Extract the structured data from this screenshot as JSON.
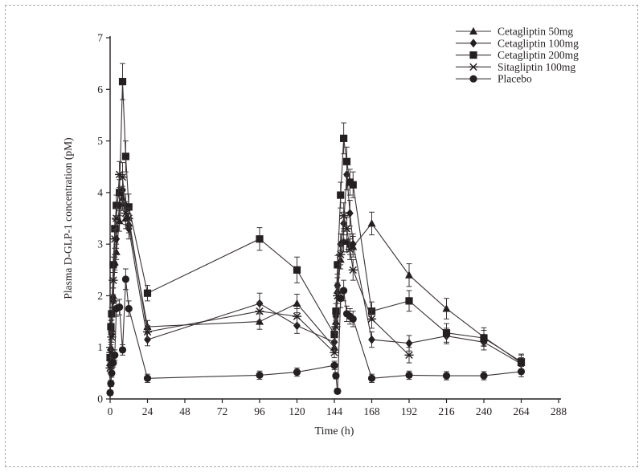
{
  "figure": {
    "background": "#ffffff",
    "border_color": "#a9a9a9",
    "ink_color": "#241f20",
    "line_color": "#3a3335"
  },
  "chart_data": {
    "type": "line",
    "title": "",
    "xlabel": "Time (h)",
    "ylabel": "Plasma D-GLP-1 concentration (pM)",
    "xlim": [
      0,
      288
    ],
    "ylim": [
      0,
      7
    ],
    "xticks": [
      0,
      24,
      48,
      72,
      96,
      120,
      144,
      168,
      192,
      216,
      240,
      264,
      288
    ],
    "yticks": [
      0,
      1,
      2,
      3,
      4,
      5,
      6,
      7
    ],
    "grid": false,
    "legend_position": "top-right",
    "error_bars": true,
    "x": [
      0,
      0.5,
      1,
      2,
      3,
      4,
      6,
      8,
      10,
      12,
      24,
      96,
      120,
      144,
      145,
      146,
      148,
      150,
      152,
      154,
      156,
      168,
      192,
      216,
      240,
      264
    ],
    "series": [
      {
        "name": "Cetagliptin 50mg",
        "marker": "triangle",
        "values": [
          0.7,
          1.0,
          1.35,
          2.0,
          2.65,
          2.85,
          3.45,
          3.9,
          3.5,
          3.4,
          1.4,
          1.5,
          1.85,
          1.0,
          1.5,
          2.1,
          2.7,
          3.05,
          3.05,
          3.0,
          2.95,
          3.4,
          2.4,
          1.75,
          1.2,
          0.7
        ],
        "err": [
          0.08,
          0.1,
          0.1,
          0.15,
          0.15,
          0.15,
          0.2,
          0.22,
          0.2,
          0.18,
          0.12,
          0.15,
          0.18,
          0.1,
          0.12,
          0.15,
          0.18,
          0.2,
          0.2,
          0.2,
          0.2,
          0.22,
          0.22,
          0.2,
          0.18,
          0.15
        ]
      },
      {
        "name": "Cetagliptin 100mg",
        "marker": "diamond",
        "values": [
          0.65,
          0.95,
          1.25,
          1.9,
          2.6,
          3.1,
          3.75,
          4.05,
          3.75,
          3.3,
          1.15,
          1.85,
          1.42,
          1.1,
          1.6,
          2.2,
          3.0,
          3.4,
          4.35,
          3.6,
          3.0,
          1.15,
          1.08,
          1.22,
          1.1,
          0.68
        ],
        "err": [
          0.08,
          0.1,
          0.1,
          0.12,
          0.15,
          0.18,
          0.2,
          0.25,
          0.22,
          0.2,
          0.12,
          0.2,
          0.15,
          0.1,
          0.12,
          0.15,
          0.2,
          0.22,
          0.3,
          0.25,
          0.2,
          0.15,
          0.15,
          0.15,
          0.15,
          0.12
        ]
      },
      {
        "name": "Cetagliptin 200mg",
        "marker": "square",
        "values": [
          0.8,
          1.4,
          1.65,
          2.6,
          3.3,
          3.75,
          4.0,
          6.15,
          4.7,
          3.72,
          2.05,
          3.1,
          2.5,
          1.25,
          1.7,
          2.6,
          3.95,
          5.05,
          4.6,
          4.2,
          4.15,
          1.7,
          1.9,
          1.28,
          1.18,
          0.72
        ],
        "err": [
          0.1,
          0.12,
          0.12,
          0.15,
          0.18,
          0.2,
          0.25,
          0.35,
          0.3,
          0.25,
          0.15,
          0.22,
          0.25,
          0.12,
          0.15,
          0.18,
          0.25,
          0.3,
          0.28,
          0.25,
          0.25,
          0.18,
          0.2,
          0.18,
          0.15,
          0.15
        ]
      },
      {
        "name": "Sitagliptin 100mg",
        "marker": "asterisk",
        "values": [
          0.6,
          0.9,
          1.2,
          2.3,
          3.1,
          3.5,
          4.35,
          4.3,
          3.6,
          3.5,
          1.3,
          1.7,
          1.6,
          0.9,
          1.4,
          2.0,
          2.8,
          3.55,
          3.3,
          2.9,
          2.5,
          1.55,
          0.85,
          null,
          null,
          null
        ],
        "err": [
          0.08,
          0.1,
          0.1,
          0.15,
          0.18,
          0.2,
          0.25,
          0.28,
          0.22,
          0.2,
          0.12,
          0.18,
          0.15,
          0.1,
          0.12,
          0.15,
          0.2,
          0.25,
          0.22,
          0.2,
          0.2,
          0.18,
          0.15,
          null,
          null,
          null
        ]
      },
      {
        "name": "Placebo",
        "marker": "circle",
        "values": [
          0.12,
          0.3,
          0.5,
          0.7,
          0.85,
          1.75,
          1.78,
          0.95,
          2.32,
          1.75,
          0.4,
          0.46,
          0.52,
          0.65,
          0.45,
          0.15,
          1.95,
          2.1,
          1.65,
          1.6,
          1.55,
          0.4,
          0.46,
          0.45,
          0.45,
          0.53
        ],
        "err": [
          0.05,
          0.06,
          0.08,
          0.08,
          0.1,
          0.15,
          0.15,
          0.1,
          0.2,
          0.15,
          0.08,
          0.08,
          0.08,
          0.08,
          0.06,
          0.05,
          0.18,
          0.2,
          0.15,
          0.15,
          0.15,
          0.08,
          0.08,
          0.08,
          0.08,
          0.1
        ]
      }
    ]
  }
}
